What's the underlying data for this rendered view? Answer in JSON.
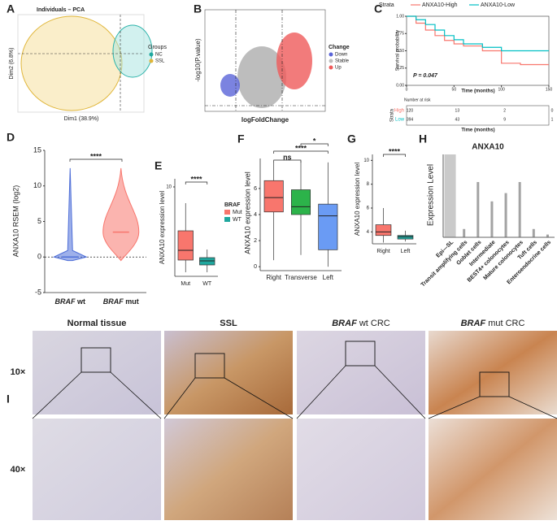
{
  "panels": {
    "A": {
      "label": "A",
      "title": "Individuals – PCA",
      "x_label": "Dim1 (38.9%)",
      "y_label": "Dim2 (6.8%)",
      "legend_title": "Groups",
      "legend": [
        "NC",
        "SSL"
      ]
    },
    "B": {
      "label": "B",
      "x_label": "logFoldChange",
      "y_label": "-log10(P.value)",
      "legend_title": "Change",
      "legend": [
        "Down",
        "Stable",
        "Up"
      ]
    },
    "C": {
      "type": "line",
      "label": "C",
      "legend_title": "Strata",
      "y_label": "Survival probability",
      "x_label": "Time (months)",
      "annotation": "P = 0.047",
      "xlim": [
        0,
        150
      ],
      "ylim": [
        0,
        1
      ],
      "xticks": [
        0,
        50,
        100,
        150
      ],
      "yticks": [
        {
          "value": 0,
          "label": "0.00"
        },
        {
          "value": 0.25,
          "label": "0.25"
        },
        {
          "value": 0.5,
          "label": "0.50"
        },
        {
          "value": 0.75,
          "label": "0.75"
        },
        {
          "value": 1,
          "label": "1.00"
        }
      ],
      "x": [
        0,
        10,
        20,
        30,
        40,
        50,
        60,
        80,
        100,
        120,
        150
      ],
      "series": [
        {
          "name": "ANXA10-High",
          "color": "#f8766d",
          "values": [
            1,
            0.9,
            0.8,
            0.72,
            0.65,
            0.6,
            0.57,
            0.5,
            0.32,
            0.3,
            0.3
          ]
        },
        {
          "name": "ANXA10-Low",
          "color": "#00bfc4",
          "values": [
            1,
            0.95,
            0.88,
            0.8,
            0.72,
            0.66,
            0.6,
            0.55,
            0.5,
            0.5,
            0.5
          ]
        }
      ],
      "risk_title": "Number at risk",
      "risk_axis": "Strata",
      "risk_x_label": "Time (months)",
      "risk": [
        {
          "name": "High",
          "values": [
            120,
            13,
            2,
            0
          ]
        },
        {
          "name": "Low",
          "values": [
            394,
            43,
            9,
            1
          ]
        }
      ]
    },
    "D": {
      "type": "violin",
      "label": "D",
      "y_label": "ANXA10 RSEM (log2)",
      "significance": "****",
      "ylim": [
        -5,
        15
      ],
      "yticks": [
        -5,
        0,
        5,
        10,
        15
      ],
      "categories": [
        {
          "gene": "BRAF",
          "rest": " wt"
        },
        {
          "gene": "BRAF",
          "rest": " mut"
        }
      ],
      "series": [
        {
          "color": "#4f6fd8",
          "range": [
            -0.5,
            12.5
          ],
          "median": 0
        },
        {
          "color": "#f8766d",
          "range": [
            -0.5,
            12.5
          ],
          "median": 3.5
        }
      ]
    },
    "E": {
      "type": "box",
      "label": "E",
      "y_label": "ANXA10 expression level",
      "significance": "****",
      "ylim": [
        -1,
        11
      ],
      "yticks": [
        10
      ],
      "categories": [
        "Mut",
        "WT"
      ],
      "legend_title": "BRAF",
      "series": [
        {
          "name": "Mut",
          "color": "#f8766d",
          "values": [
            -0.5,
            1,
            2.2,
            4.6,
            8
          ]
        },
        {
          "name": "WT",
          "color": "#1fa79e",
          "values": [
            -0.5,
            0.4,
            0.9,
            1.3,
            2.3
          ]
        }
      ]
    },
    "F": {
      "type": "box",
      "label": "F",
      "y_label": "ANXA10 expression level",
      "ylim": [
        -0.3,
        8.3
      ],
      "yticks": [
        0,
        2,
        4,
        6
      ],
      "categories": [
        "Right",
        "Transverse",
        "Left"
      ],
      "significance": [
        "ns",
        "****",
        "*"
      ],
      "series": [
        {
          "color": "#f8766d",
          "values": [
            0.5,
            4.2,
            5.3,
            6.6,
            8
          ]
        },
        {
          "color": "#2cb34a",
          "values": [
            0.9,
            4,
            4.6,
            5.9,
            8.1
          ]
        },
        {
          "color": "#6a9bf4",
          "values": [
            0,
            1.3,
            3.9,
            4.8,
            8
          ]
        }
      ]
    },
    "G": {
      "type": "box",
      "label": "G",
      "y_label": "ANXA10 expression level",
      "significance": "****",
      "ylim": [
        3,
        10.5
      ],
      "yticks": [
        4,
        6,
        8,
        10
      ],
      "categories": [
        "Right",
        "Left"
      ],
      "series": [
        {
          "color": "#f8766d",
          "values": [
            3.1,
            3.7,
            4,
            4.6,
            6
          ]
        },
        {
          "color": "#1fa79e",
          "values": [
            3.2,
            3.4,
            3.6,
            3.7,
            4.1
          ]
        }
      ]
    },
    "H": {
      "type": "strip",
      "label": "H",
      "title": "ANXA10",
      "y_label": "Expression Level",
      "ylim": [
        0,
        3
      ],
      "categories": [
        "Epi—SL",
        "Transit amplifying cells",
        "Goblet cells",
        "Intermediate",
        "BEST4+ colonocytes",
        "Mature colonocytes",
        "Tuft cells",
        "Enteroendocrine cells"
      ],
      "values": [
        3,
        0.3,
        2,
        1.3,
        1.6,
        2,
        0.3,
        0.1
      ]
    },
    "I": {
      "label": "I",
      "columns": [
        {
          "text": "Normal tissue"
        },
        {
          "text": "SSL"
        },
        {
          "gene": "BRAF",
          "rest": " wt CRC"
        },
        {
          "gene": "BRAF",
          "rest": " mut CRC"
        }
      ],
      "rows": [
        "10×",
        "40×"
      ]
    }
  }
}
